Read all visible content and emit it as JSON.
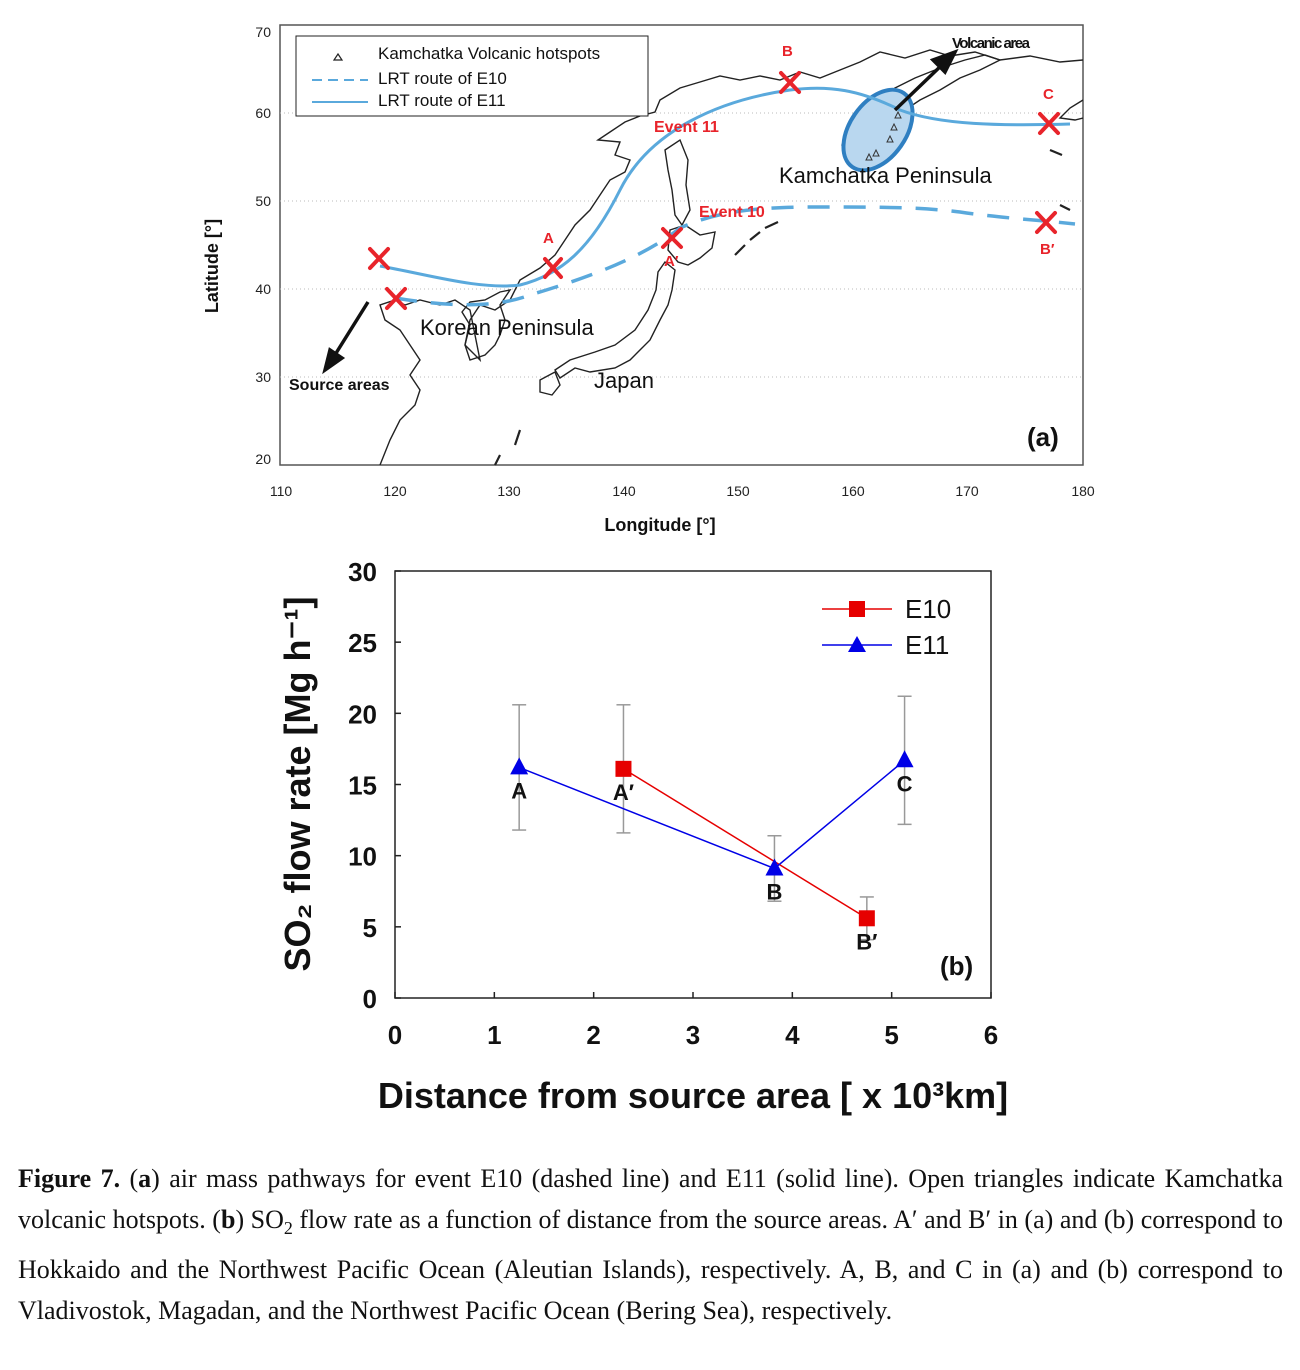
{
  "map": {
    "y_ticks": [
      "70",
      "60",
      "50",
      "40",
      "30",
      "20"
    ],
    "x_ticks": [
      "110",
      "120",
      "130",
      "140",
      "150",
      "160",
      "170",
      "180"
    ],
    "xlabel": "Longitude [°]",
    "ylabel": "Latitude [°]",
    "legend": {
      "hotspots": "Kamchatka Volcanic hotspots",
      "e10": "LRT route of E10",
      "e11": "LRT route of E11"
    },
    "labels": {
      "event11": "Event 11",
      "event10": "Event 10",
      "volcanic_area": "Volcanic area",
      "kamchatka": "Kamchatka Peninsula",
      "korean": "Korean Peninsula",
      "japan": "Japan",
      "source": "Source areas",
      "panel": "(a)"
    },
    "points": {
      "A": "A",
      "A_prime": "A′",
      "B": "B",
      "B_prime": "B′",
      "C": "C"
    },
    "colors": {
      "route": "#5aa9dc",
      "marker": "#e8242b",
      "label": "#e8242b"
    }
  },
  "chart_data": {
    "type": "line",
    "xlabel": "Distance from source area [ x 10³km]",
    "ylabel": "SO₂ flow rate [Mg h⁻¹]",
    "xlim": [
      0,
      6
    ],
    "ylim": [
      0,
      30
    ],
    "x_ticks": [
      "0",
      "1",
      "2",
      "3",
      "4",
      "5",
      "6"
    ],
    "y_ticks": [
      "0",
      "5",
      "10",
      "15",
      "20",
      "25",
      "30"
    ],
    "panel_label": "(b)",
    "series": [
      {
        "name": "E10",
        "color": "#e60000",
        "marker": "square",
        "points": [
          {
            "x": 2.3,
            "y": 16.1,
            "err": 4.5,
            "label": "A′"
          },
          {
            "x": 4.75,
            "y": 5.6,
            "err": 1.5,
            "label": "B′"
          }
        ]
      },
      {
        "name": "E11",
        "color": "#0000e6",
        "marker": "triangle",
        "points": [
          {
            "x": 1.25,
            "y": 16.2,
            "err": 4.4,
            "label": "A"
          },
          {
            "x": 3.82,
            "y": 9.1,
            "err": 2.3,
            "label": "B"
          },
          {
            "x": 5.13,
            "y": 16.7,
            "err": 4.5,
            "label": "C"
          }
        ]
      }
    ]
  },
  "caption": {
    "fig": "Figure 7.",
    "p1": " (",
    "a": "a",
    "p2": ") air mass pathways for event E10 (dashed line) and E11 (solid line). Open triangles indicate Kamchatka volcanic hotspots. (",
    "b": "b",
    "p3": ") SO",
    "sub": "2",
    "p4": " flow rate as a function of distance from the source areas. A′ and B′ in (a) and (b) correspond to Hokkaido and the Northwest Pacific Ocean (Aleutian Islands), respectively. A, B, and C in (a) and (b) correspond to Vladivostok, Magadan, and the Northwest Pacific Ocean (Bering Sea), respectively."
  }
}
